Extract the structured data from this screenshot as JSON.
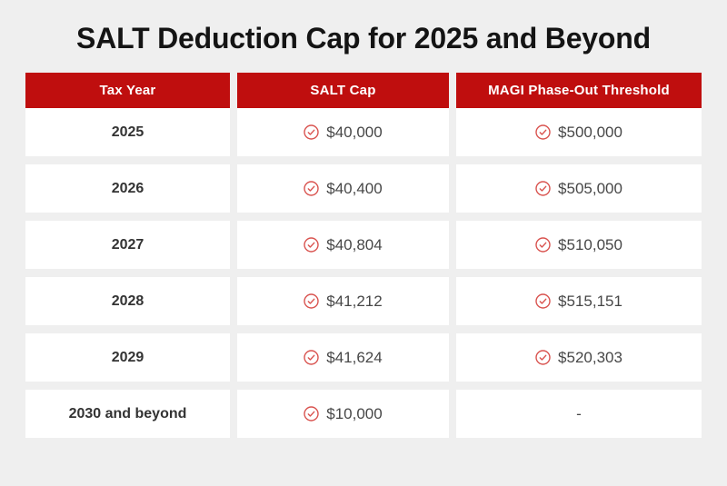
{
  "title": "SALT Deduction Cap for 2025 and Beyond",
  "chart_data": {
    "type": "table",
    "title": "SALT Deduction Cap for 2025 and Beyond",
    "columns": [
      "Tax Year",
      "SALT Cap",
      "MAGI Phase-Out Threshold"
    ],
    "rows": [
      {
        "tax_year": "2025",
        "salt_cap": "$40,000",
        "salt_cap_icon": true,
        "magi_threshold": "$500,000",
        "magi_icon": true
      },
      {
        "tax_year": "2026",
        "salt_cap": "$40,400",
        "salt_cap_icon": true,
        "magi_threshold": "$505,000",
        "magi_icon": true
      },
      {
        "tax_year": "2027",
        "salt_cap": "$40,804",
        "salt_cap_icon": true,
        "magi_threshold": "$510,050",
        "magi_icon": true
      },
      {
        "tax_year": "2028",
        "salt_cap": "$41,212",
        "salt_cap_icon": true,
        "magi_threshold": "$515,151",
        "magi_icon": true
      },
      {
        "tax_year": "2029",
        "salt_cap": "$41,624",
        "salt_cap_icon": true,
        "magi_threshold": "$520,303",
        "magi_icon": true
      },
      {
        "tax_year": "2030 and beyond",
        "salt_cap": "$10,000",
        "salt_cap_icon": true,
        "magi_threshold": "-",
        "magi_icon": false
      }
    ]
  },
  "icons": {
    "value_icon": "check-circle-icon"
  },
  "colors": {
    "background": "#efefef",
    "header_red": "#bf0e0e",
    "icon_red": "#d9534f",
    "card_white": "#ffffff",
    "title_text": "#141414",
    "year_text": "#333333",
    "value_text": "#474747"
  }
}
